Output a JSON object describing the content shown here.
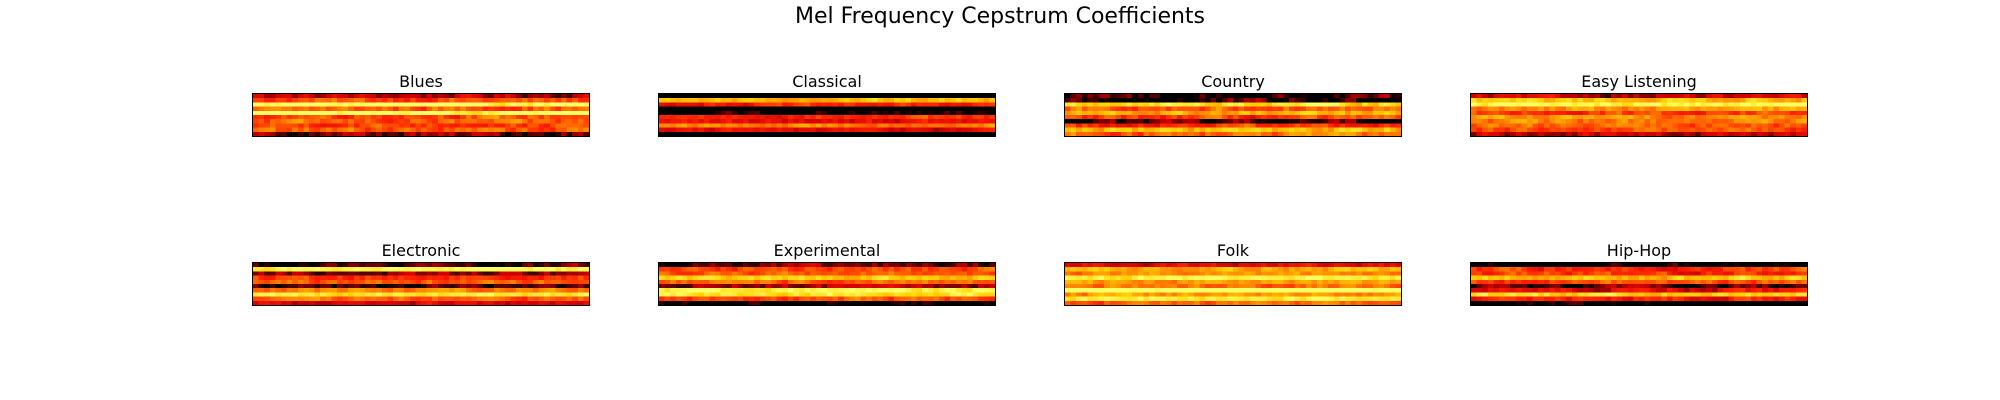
{
  "title": "Mel Frequency Cepstrum Coefficients",
  "colormap": {
    "name": "hot",
    "stops": [
      "#000000",
      "#cc0000",
      "#ff2000",
      "#ff8000",
      "#ffd000",
      "#ffff66"
    ]
  },
  "chart_data": {
    "type": "heatmap",
    "title": "Mel Frequency Cepstrum Coefficients",
    "colormap": "hot",
    "axes_visible": false,
    "grid": false,
    "panels": [
      {
        "name": "Blues",
        "rows": 10,
        "cols": 60,
        "mean": 0.58,
        "spread": 0.22,
        "dark_rows": [
          0,
          9
        ],
        "bright_rows": [
          2,
          4
        ]
      },
      {
        "name": "Classical",
        "rows": 10,
        "cols": 60,
        "mean": 0.32,
        "spread": 0.18,
        "dark_rows": [
          0,
          3,
          4,
          9
        ],
        "bright_rows": [
          1,
          7
        ]
      },
      {
        "name": "Country",
        "rows": 10,
        "cols": 60,
        "mean": 0.48,
        "spread": 0.24,
        "dark_rows": [
          0,
          1,
          6
        ],
        "bright_rows": [
          2,
          4,
          8
        ]
      },
      {
        "name": "Easy Listening",
        "rows": 10,
        "cols": 60,
        "mean": 0.55,
        "spread": 0.2,
        "dark_rows": [
          0,
          9
        ],
        "bright_rows": [
          1,
          2
        ]
      },
      {
        "name": "Electronic",
        "rows": 10,
        "cols": 60,
        "mean": 0.56,
        "spread": 0.18,
        "dark_rows": [
          0,
          2,
          5,
          9
        ],
        "bright_rows": [
          1,
          7
        ]
      },
      {
        "name": "Experimental",
        "rows": 10,
        "cols": 60,
        "mean": 0.52,
        "spread": 0.18,
        "dark_rows": [
          0,
          5,
          9
        ],
        "bright_rows": [
          3,
          6,
          7
        ]
      },
      {
        "name": "Folk",
        "rows": 10,
        "cols": 60,
        "mean": 0.62,
        "spread": 0.18,
        "dark_rows": [
          0
        ],
        "bright_rows": [
          3,
          6,
          8
        ]
      },
      {
        "name": "Hip-Hop",
        "rows": 10,
        "cols": 60,
        "mean": 0.42,
        "spread": 0.22,
        "dark_rows": [
          0,
          5,
          9
        ],
        "bright_rows": [
          3,
          7
        ]
      }
    ]
  }
}
